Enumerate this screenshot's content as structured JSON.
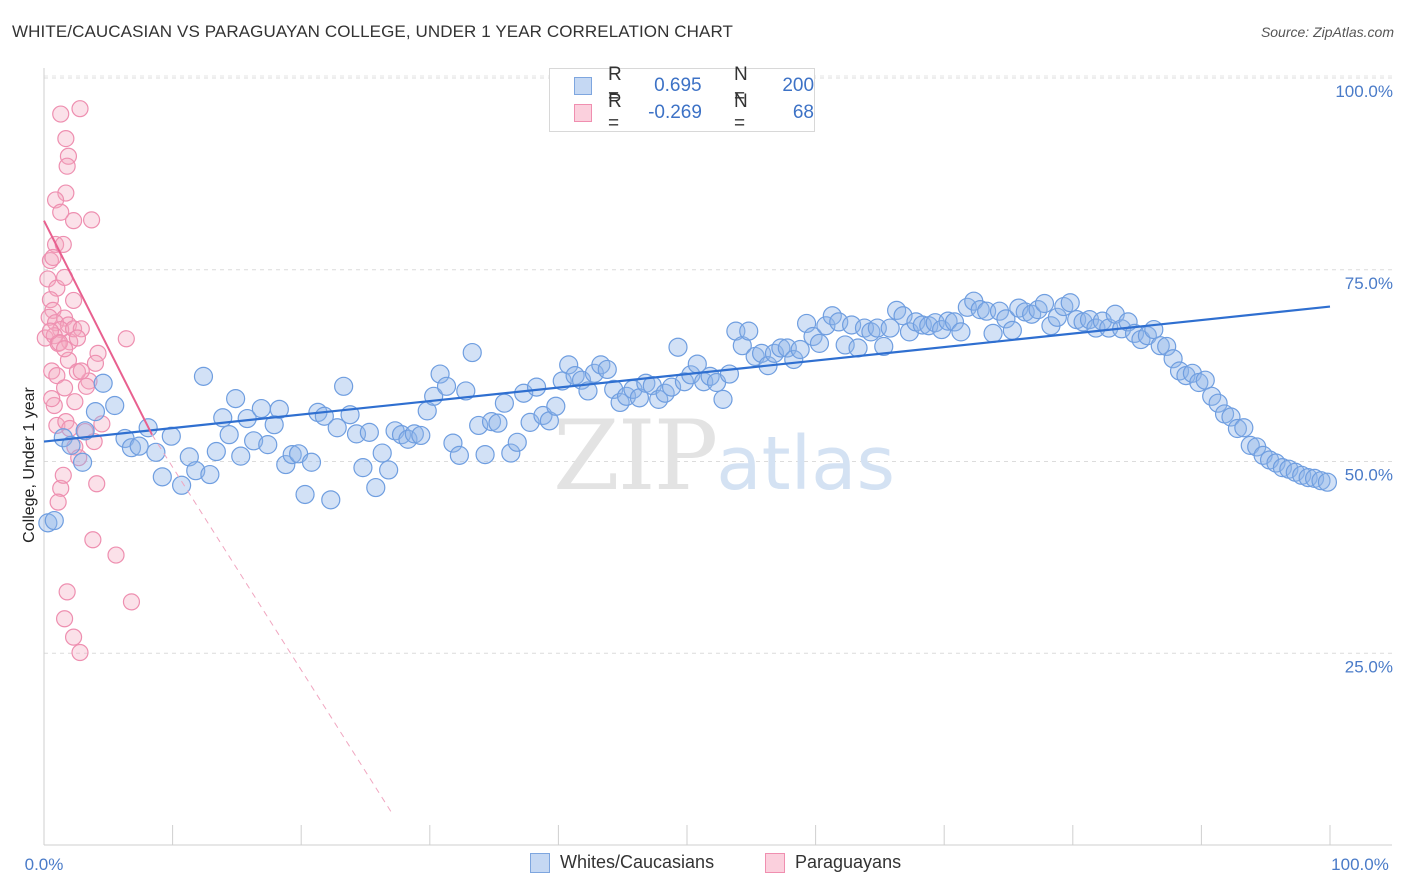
{
  "header": {
    "title": "WHITE/CAUCASIAN VS PARAGUAYAN COLLEGE, UNDER 1 YEAR CORRELATION CHART",
    "source": "Source: ZipAtlas.com"
  },
  "watermark": {
    "zip": "ZIP",
    "atlas": "atlas"
  },
  "legend_top": [
    {
      "r_label": "R =",
      "r_value": "0.695",
      "n_label": "N =",
      "n_value": "200",
      "color": "#8fb3e8"
    },
    {
      "r_label": "R =",
      "r_value": "-0.269",
      "n_label": "N =",
      "n_value": "68",
      "color": "#f4a9c0"
    }
  ],
  "legend_bottom": [
    {
      "label": "Whites/Caucasians",
      "color": "#8fb3e8"
    },
    {
      "label": "Paraguayans",
      "color": "#f4a9c0"
    }
  ],
  "chart_data": {
    "type": "scatter",
    "ylabel": "College, Under 1 year",
    "xlim": [
      0,
      100
    ],
    "ylim": [
      0,
      100
    ],
    "x_tick_labels": [
      "0.0%",
      "100.0%"
    ],
    "y_tick_labels": [
      "25.0%",
      "50.0%",
      "75.0%",
      "100.0%"
    ],
    "y_gridlines": [
      25,
      50,
      75,
      100
    ],
    "grid": "horizontal dashed",
    "legend_placement": "top-center",
    "colors": {
      "blue": "#8fb3e8",
      "blue_line": "#2f6fd0",
      "pink": "#f4a9c0",
      "pink_line": "#e8608f"
    },
    "series": [
      {
        "name": "Whites/Caucasians",
        "trend": {
          "x": [
            0,
            100
          ],
          "y": [
            52.6,
            70.2
          ]
        },
        "points": [
          [
            0.3,
            42.0
          ],
          [
            0.8,
            42.3
          ],
          [
            1.5,
            53.1
          ],
          [
            2.1,
            52.1
          ],
          [
            3.0,
            49.9
          ],
          [
            3.2,
            54.0
          ],
          [
            4.0,
            56.5
          ],
          [
            4.6,
            60.2
          ],
          [
            5.5,
            57.3
          ],
          [
            6.3,
            53.0
          ],
          [
            6.8,
            51.8
          ],
          [
            7.4,
            52.0
          ],
          [
            8.1,
            54.4
          ],
          [
            8.7,
            51.2
          ],
          [
            9.2,
            48.0
          ],
          [
            9.9,
            53.3
          ],
          [
            10.7,
            46.9
          ],
          [
            11.3,
            50.6
          ],
          [
            11.8,
            48.8
          ],
          [
            12.4,
            61.1
          ],
          [
            12.9,
            48.3
          ],
          [
            13.4,
            51.3
          ],
          [
            13.9,
            55.7
          ],
          [
            14.4,
            53.5
          ],
          [
            14.9,
            58.2
          ],
          [
            15.3,
            50.7
          ],
          [
            15.8,
            55.6
          ],
          [
            16.3,
            52.7
          ],
          [
            16.9,
            56.9
          ],
          [
            17.4,
            52.2
          ],
          [
            17.9,
            54.8
          ],
          [
            18.3,
            56.8
          ],
          [
            18.8,
            49.6
          ],
          [
            19.3,
            50.9
          ],
          [
            19.8,
            51.0
          ],
          [
            20.3,
            45.7
          ],
          [
            20.8,
            49.9
          ],
          [
            21.3,
            56.4
          ],
          [
            21.8,
            55.9
          ],
          [
            22.3,
            45.0
          ],
          [
            22.8,
            54.4
          ],
          [
            23.3,
            59.8
          ],
          [
            23.8,
            56.1
          ],
          [
            24.3,
            53.6
          ],
          [
            24.8,
            49.2
          ],
          [
            25.3,
            53.8
          ],
          [
            25.8,
            46.6
          ],
          [
            26.3,
            51.1
          ],
          [
            26.8,
            48.9
          ],
          [
            27.3,
            54.0
          ],
          [
            27.8,
            53.5
          ],
          [
            28.3,
            52.9
          ],
          [
            28.8,
            53.6
          ],
          [
            29.3,
            53.4
          ],
          [
            29.8,
            56.6
          ],
          [
            30.3,
            58.5
          ],
          [
            30.8,
            61.4
          ],
          [
            31.3,
            59.8
          ],
          [
            31.8,
            52.4
          ],
          [
            32.3,
            50.8
          ],
          [
            32.8,
            59.2
          ],
          [
            33.3,
            64.2
          ],
          [
            33.8,
            54.7
          ],
          [
            34.3,
            50.9
          ],
          [
            34.8,
            55.2
          ],
          [
            35.3,
            55.0
          ],
          [
            35.8,
            57.6
          ],
          [
            36.3,
            51.1
          ],
          [
            36.8,
            52.5
          ],
          [
            37.3,
            58.9
          ],
          [
            37.8,
            55.1
          ],
          [
            38.3,
            59.7
          ],
          [
            38.8,
            56.0
          ],
          [
            39.3,
            55.3
          ],
          [
            39.8,
            57.2
          ],
          [
            40.3,
            60.5
          ],
          [
            40.8,
            62.6
          ],
          [
            41.3,
            61.2
          ],
          [
            41.8,
            60.6
          ],
          [
            42.3,
            59.2
          ],
          [
            42.8,
            61.5
          ],
          [
            43.3,
            62.6
          ],
          [
            43.8,
            62.0
          ],
          [
            44.3,
            59.4
          ],
          [
            44.8,
            57.7
          ],
          [
            45.3,
            58.5
          ],
          [
            45.8,
            59.4
          ],
          [
            46.3,
            58.3
          ],
          [
            46.8,
            60.2
          ],
          [
            47.3,
            59.9
          ],
          [
            47.8,
            58.1
          ],
          [
            48.3,
            58.9
          ],
          [
            48.8,
            59.7
          ],
          [
            49.3,
            64.9
          ],
          [
            49.8,
            60.4
          ],
          [
            50.3,
            61.3
          ],
          [
            50.8,
            62.7
          ],
          [
            51.3,
            60.4
          ],
          [
            51.8,
            61.1
          ],
          [
            52.3,
            60.3
          ],
          [
            52.8,
            58.1
          ],
          [
            53.3,
            61.4
          ],
          [
            53.8,
            67.0
          ],
          [
            54.3,
            65.1
          ],
          [
            54.8,
            67.0
          ],
          [
            55.3,
            63.7
          ],
          [
            55.8,
            64.1
          ],
          [
            56.3,
            62.5
          ],
          [
            56.8,
            64.1
          ],
          [
            57.3,
            64.8
          ],
          [
            57.8,
            64.8
          ],
          [
            58.3,
            63.3
          ],
          [
            58.8,
            64.6
          ],
          [
            59.3,
            68.0
          ],
          [
            59.8,
            66.3
          ],
          [
            60.3,
            65.4
          ],
          [
            60.8,
            67.7
          ],
          [
            61.3,
            69.0
          ],
          [
            61.8,
            68.2
          ],
          [
            62.3,
            65.2
          ],
          [
            62.8,
            67.8
          ],
          [
            63.3,
            64.8
          ],
          [
            63.8,
            67.4
          ],
          [
            64.3,
            66.9
          ],
          [
            64.8,
            67.4
          ],
          [
            65.3,
            65.0
          ],
          [
            65.8,
            67.4
          ],
          [
            66.3,
            69.7
          ],
          [
            66.8,
            69.0
          ],
          [
            67.3,
            66.9
          ],
          [
            67.8,
            68.2
          ],
          [
            68.3,
            67.8
          ],
          [
            68.8,
            67.7
          ],
          [
            69.3,
            68.1
          ],
          [
            69.8,
            67.2
          ],
          [
            70.3,
            68.3
          ],
          [
            70.8,
            68.2
          ],
          [
            71.3,
            66.9
          ],
          [
            71.8,
            70.1
          ],
          [
            72.3,
            70.9
          ],
          [
            72.8,
            69.8
          ],
          [
            73.3,
            69.6
          ],
          [
            73.8,
            66.7
          ],
          [
            74.3,
            69.6
          ],
          [
            74.8,
            68.6
          ],
          [
            75.3,
            67.1
          ],
          [
            75.8,
            70.0
          ],
          [
            76.3,
            69.5
          ],
          [
            76.8,
            69.2
          ],
          [
            77.3,
            69.8
          ],
          [
            77.8,
            70.6
          ],
          [
            78.3,
            67.7
          ],
          [
            78.8,
            68.8
          ],
          [
            79.3,
            70.2
          ],
          [
            79.8,
            70.7
          ],
          [
            80.3,
            68.5
          ],
          [
            80.8,
            68.2
          ],
          [
            81.3,
            68.5
          ],
          [
            81.8,
            67.4
          ],
          [
            82.3,
            68.3
          ],
          [
            82.8,
            67.4
          ],
          [
            83.3,
            69.2
          ],
          [
            83.8,
            67.3
          ],
          [
            84.3,
            68.2
          ],
          [
            84.8,
            66.7
          ],
          [
            85.3,
            65.9
          ],
          [
            85.8,
            66.4
          ],
          [
            86.3,
            67.2
          ],
          [
            86.8,
            65.1
          ],
          [
            87.3,
            65.0
          ],
          [
            87.8,
            63.4
          ],
          [
            88.3,
            61.8
          ],
          [
            88.8,
            61.2
          ],
          [
            89.3,
            61.5
          ],
          [
            89.8,
            60.3
          ],
          [
            90.3,
            60.6
          ],
          [
            90.8,
            58.5
          ],
          [
            91.3,
            57.6
          ],
          [
            91.8,
            56.2
          ],
          [
            92.3,
            55.8
          ],
          [
            92.8,
            54.3
          ],
          [
            93.3,
            54.4
          ],
          [
            93.8,
            52.1
          ],
          [
            94.3,
            51.9
          ],
          [
            94.8,
            50.8
          ],
          [
            95.3,
            50.2
          ],
          [
            95.8,
            49.8
          ],
          [
            96.3,
            49.2
          ],
          [
            96.8,
            49.0
          ],
          [
            97.3,
            48.6
          ],
          [
            97.8,
            48.2
          ],
          [
            98.3,
            47.9
          ],
          [
            98.8,
            47.8
          ],
          [
            99.3,
            47.5
          ],
          [
            99.8,
            47.3
          ]
        ]
      },
      {
        "name": "Paraguayans",
        "trend": {
          "x": [
            0,
            8.4
          ],
          "y": [
            81.4,
            53.5
          ]
        },
        "trend_extension": {
          "x": [
            8.4,
            27
          ],
          "y": [
            53.5,
            4.3
          ]
        },
        "points": [
          [
            1.3,
            95.3
          ],
          [
            2.8,
            96.0
          ],
          [
            1.7,
            92.1
          ],
          [
            1.9,
            89.8
          ],
          [
            1.8,
            88.5
          ],
          [
            1.7,
            85.0
          ],
          [
            2.3,
            81.4
          ],
          [
            0.9,
            84.1
          ],
          [
            1.3,
            82.5
          ],
          [
            3.7,
            81.5
          ],
          [
            0.9,
            78.3
          ],
          [
            1.5,
            78.3
          ],
          [
            0.5,
            76.2
          ],
          [
            0.7,
            76.6
          ],
          [
            0.3,
            73.8
          ],
          [
            1.0,
            72.6
          ],
          [
            1.6,
            74.0
          ],
          [
            0.5,
            71.1
          ],
          [
            0.7,
            69.7
          ],
          [
            0.4,
            68.8
          ],
          [
            1.6,
            68.7
          ],
          [
            0.9,
            68.1
          ],
          [
            1.9,
            67.8
          ],
          [
            1.3,
            67.2
          ],
          [
            2.3,
            71.0
          ],
          [
            0.1,
            66.1
          ],
          [
            0.8,
            66.4
          ],
          [
            1.1,
            65.4
          ],
          [
            2.0,
            65.6
          ],
          [
            2.3,
            67.3
          ],
          [
            2.9,
            67.3
          ],
          [
            2.6,
            66.1
          ],
          [
            1.9,
            63.2
          ],
          [
            0.6,
            61.8
          ],
          [
            1.0,
            61.2
          ],
          [
            1.6,
            59.6
          ],
          [
            4.2,
            64.1
          ],
          [
            4.0,
            62.8
          ],
          [
            3.5,
            60.5
          ],
          [
            3.3,
            59.8
          ],
          [
            6.4,
            66.0
          ],
          [
            0.8,
            57.3
          ],
          [
            1.0,
            54.7
          ],
          [
            1.7,
            55.2
          ],
          [
            2.0,
            54.3
          ],
          [
            4.5,
            54.9
          ],
          [
            2.4,
            51.9
          ],
          [
            3.2,
            53.9
          ],
          [
            4.1,
            47.1
          ],
          [
            2.6,
            61.7
          ],
          [
            3.8,
            39.8
          ],
          [
            1.8,
            33.0
          ],
          [
            2.3,
            27.1
          ],
          [
            2.8,
            25.1
          ],
          [
            1.6,
            29.5
          ],
          [
            0.6,
            58.2
          ],
          [
            2.7,
            50.5
          ],
          [
            2.9,
            61.8
          ],
          [
            2.4,
            57.8
          ],
          [
            3.9,
            52.6
          ],
          [
            5.6,
            37.8
          ],
          [
            6.8,
            31.7
          ],
          [
            1.3,
            46.5
          ],
          [
            1.5,
            48.2
          ],
          [
            1.1,
            44.7
          ],
          [
            1.2,
            65.5
          ],
          [
            1.6,
            64.7
          ],
          [
            0.5,
            67.0
          ]
        ]
      }
    ]
  }
}
